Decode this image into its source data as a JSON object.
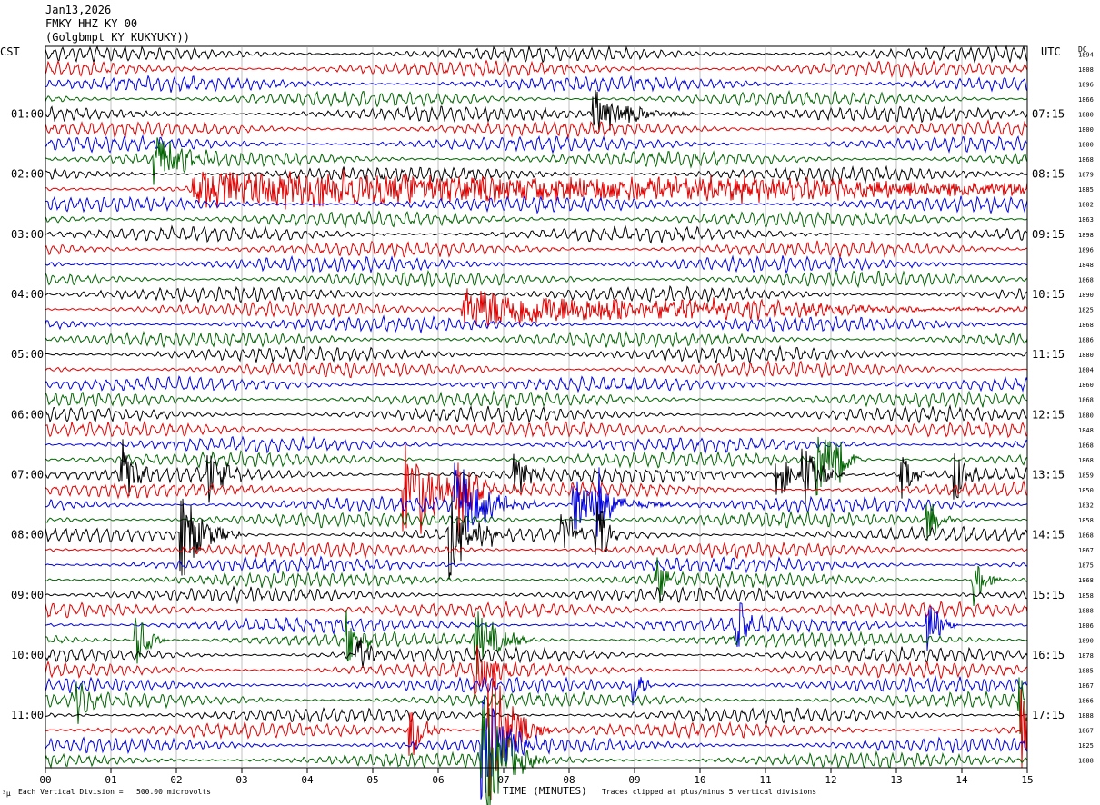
{
  "header": {
    "date": "Jan13,2026",
    "station": "FMKY HHZ KY 00",
    "location": "(Golgbmpt KY KUKYUKY))"
  },
  "axes": {
    "left_tz": "CST",
    "right_tz": "UTC",
    "dc_label": "DC"
  },
  "footer": {
    "scale_note": "Each Vertical Division =   500.00 microvolts",
    "xlabel": "TIME (MINUTES)",
    "clip_note": "Traces clipped at plus/minus 5 vertical divisions",
    "corner_mark": "³µ"
  },
  "chart_data": {
    "type": "line",
    "title": "",
    "xlabel": "TIME (MINUTES)",
    "xlim": [
      0,
      15
    ],
    "x_ticks": [
      "00",
      "01",
      "02",
      "03",
      "04",
      "05",
      "06",
      "07",
      "08",
      "09",
      "10",
      "11",
      "12",
      "13",
      "14",
      "15"
    ],
    "line_colors": [
      "#000000",
      "#e00000",
      "#0000e0",
      "#006400"
    ],
    "num_traces": 48,
    "minutes_per_trace": 15,
    "left_time_labels": [
      {
        "trace": 4,
        "label": "01:00"
      },
      {
        "trace": 8,
        "label": "02:00"
      },
      {
        "trace": 12,
        "label": "03:00"
      },
      {
        "trace": 16,
        "label": "04:00"
      },
      {
        "trace": 20,
        "label": "05:00"
      },
      {
        "trace": 24,
        "label": "06:00"
      },
      {
        "trace": 28,
        "label": "07:00"
      },
      {
        "trace": 32,
        "label": "08:00"
      },
      {
        "trace": 36,
        "label": "09:00"
      },
      {
        "trace": 40,
        "label": "10:00"
      },
      {
        "trace": 44,
        "label": "11:00"
      }
    ],
    "right_time_labels": [
      {
        "trace": 4,
        "label": "07:15"
      },
      {
        "trace": 8,
        "label": "08:15"
      },
      {
        "trace": 12,
        "label": "09:15"
      },
      {
        "trace": 16,
        "label": "10:15"
      },
      {
        "trace": 20,
        "label": "11:15"
      },
      {
        "trace": 24,
        "label": "12:15"
      },
      {
        "trace": 28,
        "label": "13:15"
      },
      {
        "trace": 32,
        "label": "14:15"
      },
      {
        "trace": 36,
        "label": "15:15"
      },
      {
        "trace": 40,
        "label": "16:15"
      },
      {
        "trace": 44,
        "label": "17:15"
      }
    ],
    "dc_offsets": [
      "1894",
      "1808",
      "1896",
      "1866",
      "1880",
      "1800",
      "1800",
      "1868",
      "1879",
      "1885",
      "1802",
      "1863",
      "1898",
      "1896",
      "1848",
      "1868",
      "1890",
      "1825",
      "1868",
      "1886",
      "1880",
      "1804",
      "1860",
      "1868",
      "1880",
      "1848",
      "1868",
      "1868",
      "1859",
      "1850",
      "1832",
      "1858",
      "1868",
      "1867",
      "1875",
      "1868",
      "1858",
      "1888",
      "1806",
      "1890",
      "1878",
      "1885",
      "1867",
      "1866",
      "1888",
      "1867",
      "1825",
      "1888"
    ],
    "events": [
      {
        "trace": 4,
        "minute": 8.4,
        "amp": 1.6,
        "dur": 0.5
      },
      {
        "trace": 7,
        "minute": 1.7,
        "amp": 2.0,
        "dur": 0.3
      },
      {
        "trace": 9,
        "minute": 2.3,
        "amp": 1.2,
        "dur": 12.0
      },
      {
        "trace": 17,
        "minute": 6.4,
        "amp": 1.4,
        "dur": 3.0
      },
      {
        "trace": 27,
        "minute": 11.8,
        "amp": 2.8,
        "dur": 0.2
      },
      {
        "trace": 27,
        "minute": 12.1,
        "amp": 2.0,
        "dur": 0.15
      },
      {
        "trace": 28,
        "minute": 1.2,
        "amp": 2.4,
        "dur": 0.15
      },
      {
        "trace": 28,
        "minute": 2.5,
        "amp": 2.0,
        "dur": 0.2
      },
      {
        "trace": 28,
        "minute": 7.2,
        "amp": 1.6,
        "dur": 0.15
      },
      {
        "trace": 28,
        "minute": 11.2,
        "amp": 2.0,
        "dur": 0.15
      },
      {
        "trace": 28,
        "minute": 11.6,
        "amp": 2.2,
        "dur": 0.2
      },
      {
        "trace": 28,
        "minute": 13.1,
        "amp": 1.6,
        "dur": 0.15
      },
      {
        "trace": 28,
        "minute": 13.9,
        "amp": 2.0,
        "dur": 0.15
      },
      {
        "trace": 29,
        "minute": 5.5,
        "amp": 3.2,
        "dur": 0.25
      },
      {
        "trace": 29,
        "minute": 5.75,
        "amp": 3.0,
        "dur": 0.25
      },
      {
        "trace": 29,
        "minute": 6.3,
        "amp": 3.6,
        "dur": 0.2
      },
      {
        "trace": 30,
        "minute": 6.3,
        "amp": 3.0,
        "dur": 0.4
      },
      {
        "trace": 30,
        "minute": 8.1,
        "amp": 1.8,
        "dur": 0.5
      },
      {
        "trace": 30,
        "minute": 8.45,
        "amp": 2.5,
        "dur": 0.1
      },
      {
        "trace": 31,
        "minute": 13.5,
        "amp": 1.6,
        "dur": 0.15
      },
      {
        "trace": 32,
        "minute": 2.1,
        "amp": 3.0,
        "dur": 0.3
      },
      {
        "trace": 32,
        "minute": 6.2,
        "amp": 3.0,
        "dur": 0.3
      },
      {
        "trace": 32,
        "minute": 7.9,
        "amp": 1.8,
        "dur": 0.2
      },
      {
        "trace": 32,
        "minute": 8.45,
        "amp": 3.0,
        "dur": 0.1
      },
      {
        "trace": 35,
        "minute": 9.35,
        "amp": 1.8,
        "dur": 0.15
      },
      {
        "trace": 35,
        "minute": 14.2,
        "amp": 1.8,
        "dur": 0.15
      },
      {
        "trace": 38,
        "minute": 10.6,
        "amp": 1.4,
        "dur": 0.15
      },
      {
        "trace": 38,
        "minute": 13.5,
        "amp": 2.2,
        "dur": 0.15
      },
      {
        "trace": 39,
        "minute": 1.4,
        "amp": 2.0,
        "dur": 0.15
      },
      {
        "trace": 39,
        "minute": 4.6,
        "amp": 2.0,
        "dur": 0.15
      },
      {
        "trace": 39,
        "minute": 6.6,
        "amp": 2.2,
        "dur": 0.3
      },
      {
        "trace": 40,
        "minute": 4.8,
        "amp": 1.4,
        "dur": 0.15
      },
      {
        "trace": 41,
        "minute": 6.6,
        "amp": 1.6,
        "dur": 0.3
      },
      {
        "trace": 42,
        "minute": 9.0,
        "amp": 1.6,
        "dur": 0.1
      },
      {
        "trace": 43,
        "minute": 0.5,
        "amp": 1.6,
        "dur": 0.15
      },
      {
        "trace": 43,
        "minute": 14.9,
        "amp": 2.4,
        "dur": 0.2
      },
      {
        "trace": 45,
        "minute": 5.6,
        "amp": 2.0,
        "dur": 0.2
      },
      {
        "trace": 45,
        "minute": 6.8,
        "amp": 5.0,
        "dur": 0.3
      },
      {
        "trace": 45,
        "minute": 14.95,
        "amp": 3.0,
        "dur": 0.2
      },
      {
        "trace": 46,
        "minute": 6.7,
        "amp": 4.0,
        "dur": 0.3
      },
      {
        "trace": 47,
        "minute": 6.7,
        "amp": 5.0,
        "dur": 0.3
      }
    ]
  }
}
